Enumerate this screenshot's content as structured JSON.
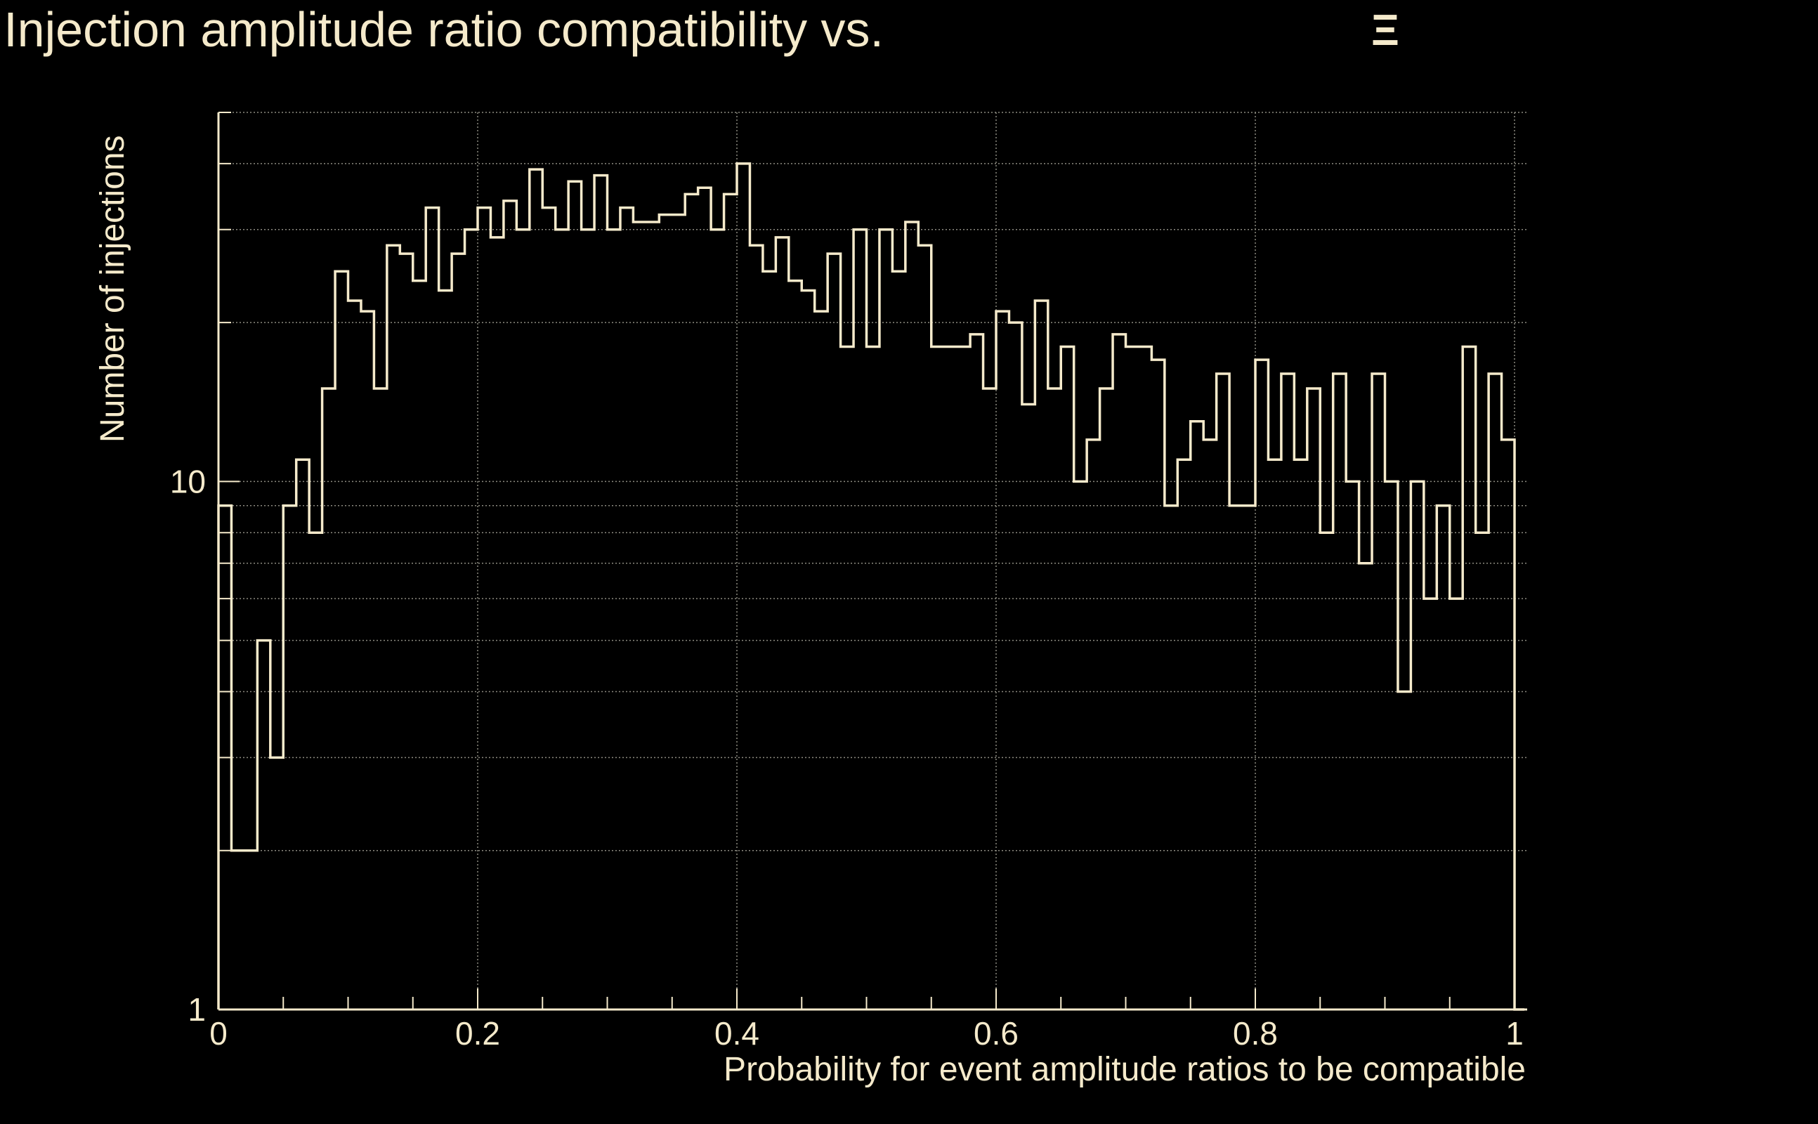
{
  "chart_data": {
    "type": "histogram",
    "title": "Injection amplitude ratio compatibility vs.",
    "title_symbol": "Ξ",
    "xlabel": "Probability for event amplitude ratios to be compatible",
    "ylabel": "Number of injections",
    "y_scale": "log",
    "xlim": [
      0,
      1
    ],
    "ylim": [
      1,
      50
    ],
    "x_ticks": [
      {
        "value": 0,
        "label": "0"
      },
      {
        "value": 0.2,
        "label": "0.2"
      },
      {
        "value": 0.4,
        "label": "0.4"
      },
      {
        "value": 0.6,
        "label": "0.6"
      },
      {
        "value": 0.8,
        "label": "0.8"
      },
      {
        "value": 1,
        "label": "1"
      }
    ],
    "y_ticks": [
      {
        "value": 1,
        "label": "1"
      },
      {
        "value": 10,
        "label": "10"
      }
    ],
    "y_gridlines": [
      2,
      3,
      4,
      5,
      6,
      7,
      8,
      9,
      10,
      20,
      30,
      40,
      50
    ],
    "grid": true,
    "line_color": "#f5eacb",
    "grid_color": "#8c8a80",
    "background": "#000000",
    "bin_edges_start": 0,
    "bin_width": 0.01,
    "counts": [
      9,
      2,
      2,
      5,
      3,
      9,
      11,
      8,
      15,
      25,
      22,
      21,
      15,
      28,
      27,
      24,
      33,
      23,
      27,
      30,
      33,
      29,
      34,
      30,
      39,
      33,
      30,
      37,
      30,
      38,
      30,
      33,
      31,
      31,
      32,
      32,
      35,
      36,
      30,
      35,
      40,
      28,
      25,
      29,
      24,
      23,
      21,
      27,
      18,
      30,
      18,
      30,
      25,
      31,
      28,
      18,
      18,
      18,
      19,
      15,
      21,
      20,
      14,
      22,
      15,
      18,
      10,
      12,
      15,
      19,
      18,
      18,
      17,
      9,
      11,
      13,
      12,
      16,
      9,
      9,
      17,
      11,
      16,
      11,
      15,
      8,
      16,
      10,
      7,
      16,
      10,
      4,
      10,
      6,
      9,
      6,
      18,
      8,
      16,
      12
    ]
  }
}
